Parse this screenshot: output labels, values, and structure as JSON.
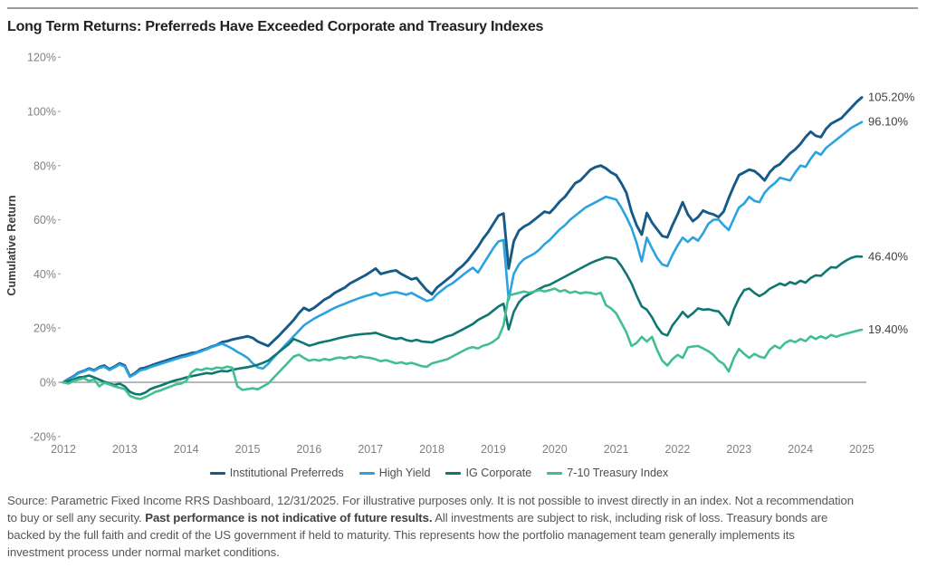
{
  "page": {
    "title": "Long Term Returns: Preferreds Have Exceeded Corporate and Treasury Indexes"
  },
  "chart_data": {
    "type": "line",
    "title": "Long Term Returns: Preferreds Have Exceeded Corporate and Treasury Indexes",
    "xlabel": "",
    "ylabel": "Cumulative Return",
    "ylim": [
      -20,
      120
    ],
    "yticks": [
      120,
      100,
      80,
      60,
      40,
      20,
      0,
      -20
    ],
    "ytick_labels": [
      "120%",
      "100%",
      "80%",
      "60%",
      "40%",
      "20%",
      "0%",
      "-20%"
    ],
    "x_year_labels": [
      "2012",
      "2013",
      "2014",
      "2015",
      "2016",
      "2017",
      "2018",
      "2019",
      "2020",
      "2021",
      "2022",
      "2023",
      "2024",
      "2025"
    ],
    "points_per_year": 12,
    "grid": "zero-line-only",
    "legend_position": "bottom",
    "axis_text_color": "#808184",
    "zero_line_color": "#9da0a3",
    "end_label_color": "#3f4042",
    "series": [
      {
        "name": "Institutional Preferreds",
        "color": "#175a88",
        "end_label": "105.20%",
        "end_value": 105.2,
        "values": [
          0,
          1.2,
          2.2,
          3.6,
          4.2,
          5.1,
          4.4,
          5.6,
          6.2,
          4.8,
          5.8,
          7.0,
          6.2,
          2.2,
          3.4,
          5.0,
          5.4,
          6.1,
          6.8,
          7.4,
          8.0,
          8.6,
          9.2,
          9.8,
          10.2,
          10.8,
          11.0,
          11.8,
          12.4,
          13.2,
          13.8,
          14.8,
          15.2,
          15.8,
          16.2,
          16.6,
          17.0,
          16.4,
          15.0,
          14.2,
          13.4,
          15.2,
          17.0,
          19.0,
          21.0,
          23.0,
          25.5,
          27.5,
          26.5,
          27.5,
          29.0,
          30.5,
          31.5,
          33.0,
          34.0,
          35.0,
          36.5,
          37.5,
          38.5,
          39.5,
          40.7,
          42.0,
          40.0,
          40.5,
          41.0,
          41.3,
          40.0,
          39.0,
          38.0,
          38.5,
          36.2,
          34.0,
          32.5,
          35.0,
          36.5,
          38.0,
          39.5,
          41.5,
          43.0,
          45.0,
          47.5,
          50.0,
          53.0,
          55.5,
          58.5,
          61.5,
          62.3,
          42.0,
          52.0,
          56.0,
          57.5,
          58.5,
          60.0,
          61.5,
          63.0,
          62.5,
          64.5,
          66.8,
          68.5,
          71.0,
          73.5,
          74.5,
          76.5,
          78.5,
          79.5,
          80.0,
          79.0,
          77.5,
          76.5,
          73.5,
          70.0,
          63.0,
          58.0,
          54.5,
          62.5,
          59.0,
          56.5,
          54.0,
          53.5,
          58.0,
          62.0,
          66.5,
          62.0,
          59.5,
          61.0,
          63.4,
          62.5,
          62.0,
          61.0,
          63.0,
          68.0,
          72.5,
          76.5,
          77.5,
          78.5,
          78.0,
          76.5,
          74.5,
          77.5,
          79.5,
          80.5,
          82.5,
          84.5,
          86.0,
          88.0,
          90.5,
          92.5,
          91.0,
          90.5,
          93.5,
          95.5,
          96.5,
          97.5,
          99.5,
          101.5,
          103.5,
          105.2
        ]
      },
      {
        "name": "High Yield",
        "color": "#2aa3df",
        "end_label": "96.10%",
        "end_value": 96.1,
        "values": [
          0,
          1.0,
          2.0,
          3.4,
          4.0,
          4.8,
          4.2,
          5.3,
          5.8,
          4.5,
          5.5,
          6.6,
          5.8,
          2.0,
          3.0,
          4.4,
          4.8,
          5.6,
          6.2,
          6.8,
          7.4,
          8.0,
          8.6,
          9.2,
          9.6,
          10.2,
          10.8,
          11.5,
          12.2,
          13.0,
          13.6,
          14.2,
          13.4,
          12.4,
          11.2,
          10.2,
          9.0,
          7.0,
          5.5,
          5.1,
          6.8,
          9.0,
          11.0,
          13.0,
          15.0,
          17.0,
          19.0,
          21.0,
          22.3,
          23.5,
          24.5,
          25.5,
          26.5,
          27.5,
          28.3,
          29.0,
          29.8,
          30.5,
          31.2,
          31.8,
          32.3,
          33.0,
          32.0,
          32.5,
          33.0,
          33.3,
          32.8,
          32.3,
          33.0,
          32.0,
          31.0,
          30.0,
          30.5,
          32.5,
          34.0,
          35.5,
          36.5,
          38.0,
          39.5,
          41.0,
          42.3,
          40.5,
          43.5,
          46.5,
          49.5,
          52.0,
          52.5,
          30.5,
          40.0,
          43.5,
          45.5,
          46.5,
          47.5,
          49.0,
          51.0,
          52.5,
          54.5,
          56.5,
          58.0,
          60.0,
          61.5,
          63.0,
          64.5,
          65.5,
          66.5,
          67.5,
          68.5,
          68.0,
          67.5,
          64.5,
          61.0,
          57.0,
          51.5,
          44.6,
          53.4,
          49.5,
          46.0,
          43.5,
          42.9,
          47.0,
          50.5,
          53.4,
          51.8,
          53.5,
          52.3,
          55.0,
          58.5,
          60.0,
          60.1,
          58.0,
          56.2,
          60.5,
          64.5,
          66.0,
          68.5,
          67.0,
          66.5,
          70.0,
          72.0,
          73.5,
          75.5,
          75.0,
          74.5,
          77.5,
          80.0,
          79.5,
          82.5,
          85.0,
          84.0,
          86.5,
          88.0,
          89.5,
          91.0,
          92.5,
          94.0,
          95.0,
          96.1
        ]
      },
      {
        "name": "IG Corporate",
        "color": "#107672",
        "end_label": "46.40%",
        "end_value": 46.4,
        "values": [
          0,
          0.5,
          1.0,
          1.8,
          2.0,
          2.5,
          1.8,
          1.0,
          0.2,
          -0.5,
          -1.0,
          -0.5,
          -1.5,
          -3.5,
          -4.3,
          -4.5,
          -3.8,
          -2.5,
          -1.8,
          -1.2,
          -0.5,
          0.2,
          0.8,
          1.2,
          1.8,
          2.2,
          2.6,
          3.0,
          3.4,
          3.2,
          3.8,
          4.2,
          4.0,
          4.6,
          5.0,
          5.3,
          5.6,
          6.0,
          6.5,
          7.2,
          8.0,
          9.5,
          11.0,
          12.5,
          14.0,
          16.0,
          15.2,
          14.4,
          13.5,
          14.0,
          14.6,
          15.0,
          15.4,
          15.9,
          16.4,
          16.8,
          17.2,
          17.5,
          17.7,
          17.9,
          18.0,
          18.3,
          17.6,
          17.0,
          16.4,
          16.0,
          16.4,
          15.6,
          15.2,
          15.7,
          15.1,
          14.9,
          14.7,
          15.5,
          16.2,
          17.0,
          17.5,
          18.5,
          19.5,
          20.5,
          21.5,
          23.0,
          24.0,
          25.0,
          26.5,
          28.0,
          29.0,
          19.5,
          26.0,
          29.5,
          31.5,
          32.5,
          33.5,
          34.5,
          35.5,
          36.0,
          37.0,
          38.0,
          39.0,
          40.0,
          41.0,
          42.0,
          43.0,
          44.0,
          44.8,
          45.5,
          46.2,
          46.0,
          45.5,
          43.0,
          40.0,
          36.5,
          32.0,
          28.0,
          26.8,
          24.0,
          20.5,
          18.0,
          17.3,
          21.0,
          23.4,
          26.0,
          24.0,
          25.5,
          27.3,
          26.8,
          27.0,
          26.5,
          26.2,
          24.0,
          21.2,
          27.0,
          31.0,
          34.0,
          34.6,
          33.0,
          31.8,
          32.9,
          34.5,
          35.5,
          36.5,
          35.8,
          37.0,
          36.3,
          37.5,
          36.8,
          38.5,
          39.5,
          39.3,
          41.0,
          42.5,
          42.3,
          43.8,
          45.0,
          46.0,
          46.5,
          46.4
        ]
      },
      {
        "name": "7-10 Treasury Index",
        "color": "#41bf8f",
        "end_label": "19.40%",
        "end_value": 19.4,
        "values": [
          0,
          -0.5,
          0.5,
          1.0,
          1.5,
          0.5,
          1.0,
          -1.5,
          -0.2,
          -0.8,
          -1.5,
          -2.0,
          -2.5,
          -5.0,
          -5.8,
          -6.2,
          -5.5,
          -4.5,
          -3.5,
          -3.0,
          -2.2,
          -1.5,
          -0.8,
          -0.5,
          0.5,
          3.5,
          4.8,
          4.5,
          5.2,
          4.8,
          5.5,
          5.2,
          5.8,
          5.4,
          -1.5,
          -2.8,
          -2.5,
          -2.2,
          -2.6,
          -1.5,
          -0.5,
          1.5,
          3.5,
          5.5,
          7.5,
          9.5,
          10.2,
          9.0,
          8.0,
          8.4,
          8.0,
          8.6,
          8.2,
          8.8,
          9.2,
          8.8,
          9.4,
          9.0,
          9.6,
          9.2,
          9.0,
          8.5,
          7.8,
          8.2,
          7.6,
          7.0,
          7.4,
          6.8,
          7.2,
          6.6,
          6.0,
          5.7,
          7.0,
          7.5,
          8.0,
          8.5,
          9.5,
          10.5,
          11.5,
          12.5,
          13.0,
          12.5,
          13.5,
          14.0,
          15.0,
          16.5,
          21.0,
          32.0,
          32.5,
          33.0,
          33.5,
          33.0,
          33.5,
          34.0,
          33.5,
          34.0,
          34.6,
          33.5,
          34.0,
          33.0,
          33.5,
          32.8,
          33.2,
          33.0,
          32.5,
          33.0,
          28.5,
          27.3,
          25.5,
          22.0,
          18.5,
          13.4,
          14.5,
          16.8,
          15.0,
          16.8,
          12.0,
          8.0,
          6.2,
          8.5,
          10.1,
          9.0,
          12.9,
          13.2,
          13.4,
          12.5,
          11.5,
          10.1,
          8.0,
          6.8,
          4.0,
          9.0,
          12.3,
          10.5,
          9.0,
          10.5,
          9.5,
          9.0,
          12.0,
          13.5,
          12.5,
          14.5,
          15.5,
          14.8,
          16.0,
          15.2,
          17.0,
          16.0,
          17.0,
          16.2,
          17.5,
          16.8,
          17.5,
          18.0,
          18.5,
          19.0,
          19.4
        ]
      }
    ]
  },
  "footer": {
    "line1": "Source: Parametric Fixed Income RRS Dashboard, 12/31/2025. For illustrative purposes only. It is not possible to invest directly in an index. Not a recommendation",
    "line2_pre": "to buy or sell any security. ",
    "line2_bold": "Past performance is not indicative of future results.",
    "line2_post": " All investments are subject to risk, including risk of loss. Treasury bonds are",
    "line3": "backed by the full faith and credit of the US government if held to maturity. This represents how the portfolio management team generally implements its",
    "line4": "investment process under normal market conditions."
  }
}
